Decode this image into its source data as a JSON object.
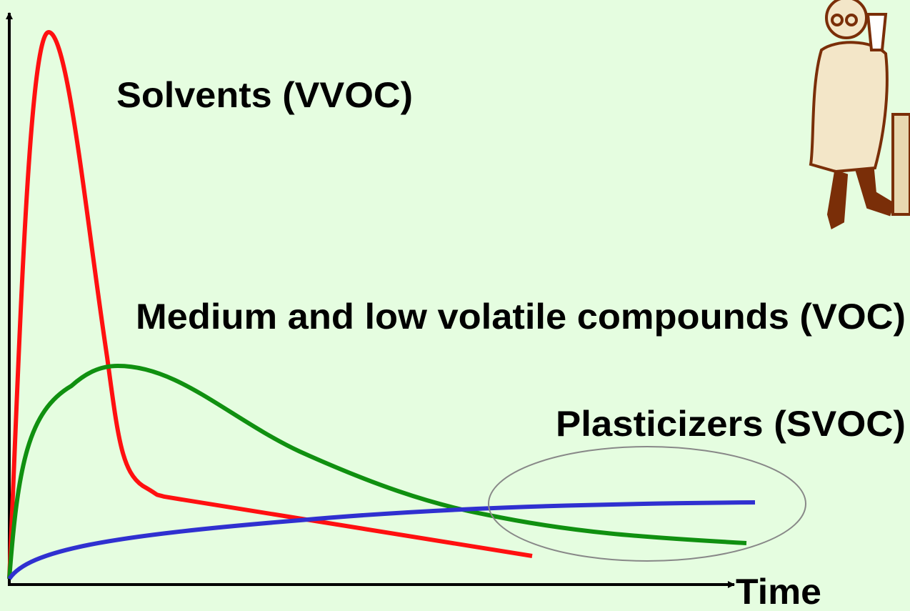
{
  "labels": {
    "solvents": "Solvents (VVOC)",
    "voc": "Medium and low volatile compounds (VOC)",
    "svoc": "Plasticizers (SVOC)",
    "x_axis": "Time"
  }
}
